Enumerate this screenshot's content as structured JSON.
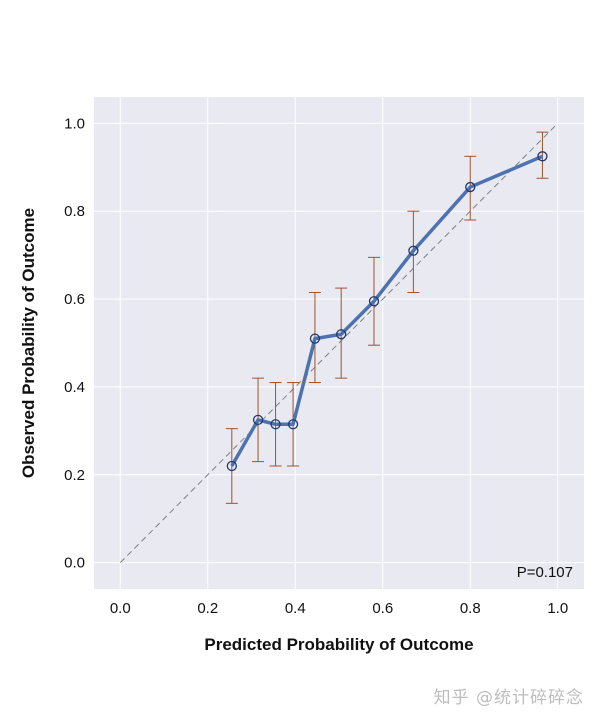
{
  "chart_data": {
    "type": "line",
    "xlabel": "Predicted Probability of Outcome",
    "ylabel": "Observed Probability of Outcome",
    "xlim": [
      -0.06,
      1.06
    ],
    "ylim": [
      -0.06,
      1.06
    ],
    "x_ticks": [
      0.0,
      0.2,
      0.4,
      0.6,
      0.8,
      1.0
    ],
    "y_ticks": [
      0.0,
      0.2,
      0.4,
      0.6,
      0.8,
      1.0
    ],
    "x_tick_labels": [
      "0.0",
      "0.2",
      "0.4",
      "0.6",
      "0.8",
      "1.0"
    ],
    "y_tick_labels": [
      "0.0",
      "0.2",
      "0.4",
      "0.6",
      "0.8",
      "1.0"
    ],
    "grid": true,
    "annotation": "P=0.107",
    "reference_line": {
      "x": [
        0,
        1
      ],
      "y": [
        0,
        1
      ],
      "style": "dashed"
    },
    "series": [
      {
        "x": [
          0.255,
          0.315,
          0.355,
          0.395,
          0.445,
          0.505,
          0.58,
          0.67,
          0.8,
          0.965
        ],
        "y": [
          0.22,
          0.325,
          0.315,
          0.315,
          0.51,
          0.52,
          0.595,
          0.71,
          0.855,
          0.925
        ],
        "err_low": [
          0.135,
          0.23,
          0.22,
          0.22,
          0.41,
          0.42,
          0.495,
          0.615,
          0.78,
          0.875
        ],
        "err_high": [
          0.305,
          0.42,
          0.41,
          0.41,
          0.615,
          0.625,
          0.695,
          0.8,
          0.925,
          0.98
        ]
      }
    ],
    "colors": {
      "background": "#e9e9f2",
      "grid": "#ffffff",
      "line": "#4c72b0",
      "marker_edge": "#1f3a6e",
      "errorbar": "#a0522d",
      "reference": "#808080"
    }
  },
  "watermark": "知乎 @统计碎碎念"
}
